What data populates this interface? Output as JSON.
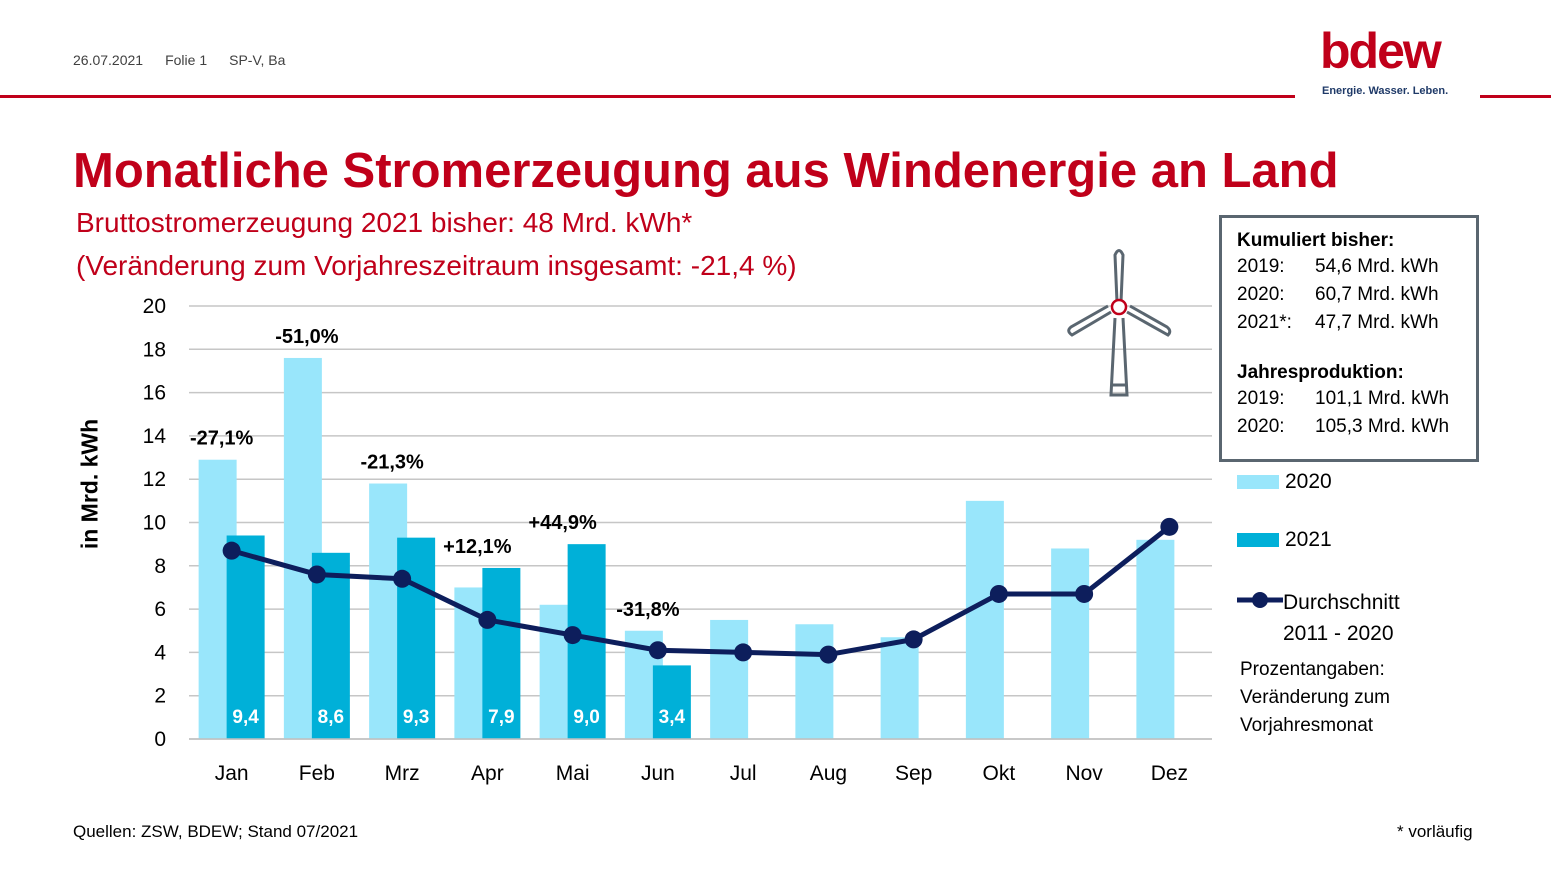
{
  "header": {
    "date": "26.07.2021",
    "slide": "Folie 1",
    "author": "SP-V, Ba",
    "logo_word": "bdew",
    "logo_tagline": "Energie. Wasser. Leben."
  },
  "title": "Monatliche Stromerzeugung aus Windenergie an Land",
  "subtitle_line1": "Bruttostromerzeugung 2021 bisher: 48 Mrd. kWh*",
  "subtitle_line2": "(Veränderung zum Vorjahreszeitraum insgesamt: -21,4 %)",
  "infobox": {
    "heading1": "Kumuliert bisher:",
    "cumulative": [
      {
        "year": "2019:",
        "value": "54,6 Mrd. kWh"
      },
      {
        "year": "2020:",
        "value": "60,7 Mrd. kWh"
      },
      {
        "year": "2021*:",
        "value": "47,7 Mrd. kWh"
      }
    ],
    "heading2": "Jahresproduktion:",
    "annual": [
      {
        "year": "2019:",
        "value": "101,1 Mrd. kWh"
      },
      {
        "year": "2020:",
        "value": "105,3 Mrd. kWh"
      }
    ]
  },
  "legend": {
    "s2020": "2020",
    "s2021": "2021",
    "avg_line1": "Durchschnitt",
    "avg_line2": "2011 - 2020",
    "note_line1": "Prozentangaben:",
    "note_line2": "Veränderung zum",
    "note_line3": "Vorjahresmonat"
  },
  "footer": {
    "sources": "Quellen: ZSW, BDEW; Stand 07/2021",
    "note": "* vorläufig"
  },
  "colors": {
    "brand_red": "#c0001a",
    "bar_2020": "#99e6fb",
    "bar_2021": "#00b0d8",
    "avg_line": "#0d1e5c",
    "grid": "#c6c6c6",
    "box_border": "#5a6670"
  },
  "chart_data": {
    "type": "bar",
    "ylabel": "in Mrd. kWh",
    "ylim": [
      0,
      20
    ],
    "yticks": [
      0,
      2,
      4,
      6,
      8,
      10,
      12,
      14,
      16,
      18,
      20
    ],
    "grid": true,
    "categories": [
      "Jan",
      "Feb",
      "Mrz",
      "Apr",
      "Mai",
      "Jun",
      "Jul",
      "Aug",
      "Sep",
      "Okt",
      "Nov",
      "Dez"
    ],
    "series": [
      {
        "name": "2020",
        "type": "bar",
        "values": [
          12.9,
          17.6,
          11.8,
          7.0,
          6.2,
          5.0,
          5.5,
          5.3,
          4.7,
          11.0,
          8.8,
          9.2
        ]
      },
      {
        "name": "2021",
        "type": "bar",
        "values": [
          9.4,
          8.6,
          9.3,
          7.9,
          9.0,
          3.4,
          null,
          null,
          null,
          null,
          null,
          null
        ]
      },
      {
        "name": "Durchschnitt 2011 - 2020",
        "type": "line",
        "values": [
          8.7,
          7.6,
          7.4,
          5.5,
          4.8,
          4.1,
          4.0,
          3.9,
          4.6,
          6.7,
          6.7,
          9.8
        ]
      }
    ],
    "value_labels_2021": [
      "9,4",
      "8,6",
      "9,3",
      "7,9",
      "9,0",
      "3,4"
    ],
    "pct_labels": [
      "-27,1%",
      "-51,0%",
      "-21,3%",
      "+12,1%",
      "+44,9%",
      "-31,8%"
    ],
    "legend_position": "right"
  }
}
